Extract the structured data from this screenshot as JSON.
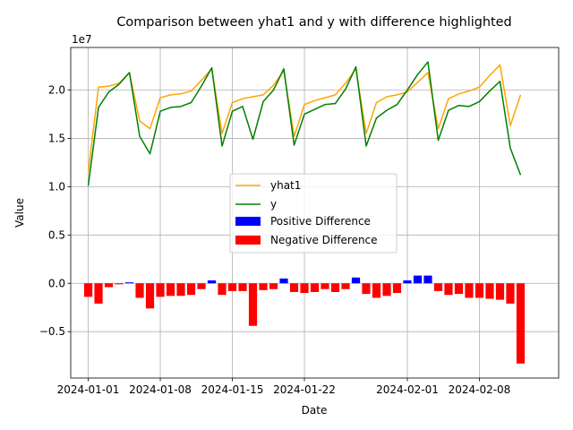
{
  "chart_data": {
    "type": "line+bar",
    "title": "Comparison between yhat1 and y with difference highlighted",
    "xlabel": "Date",
    "ylabel": "Value",
    "y_scale_note": "1e7",
    "ylim": [
      -9.8,
      24.4
    ],
    "grid": true,
    "legend_placement": "center",
    "x_start": "2024-01-01",
    "xlim_days": [
      -1.7,
      45.7
    ],
    "x_ticks": [
      {
        "day": 0,
        "label": "2024-01-01"
      },
      {
        "day": 7,
        "label": "2024-01-08"
      },
      {
        "day": 14,
        "label": "2024-01-15"
      },
      {
        "day": 21,
        "label": "2024-01-22"
      },
      {
        "day": 31,
        "label": "2024-02-01"
      },
      {
        "day": 38,
        "label": "2024-02-08"
      }
    ],
    "y_ticks": [
      {
        "value": -5,
        "label": "−0.5"
      },
      {
        "value": 0,
        "label": "0.0"
      },
      {
        "value": 5,
        "label": "0.5"
      },
      {
        "value": 10,
        "label": "1.0"
      },
      {
        "value": 15,
        "label": "1.5"
      },
      {
        "value": 20,
        "label": "2.0"
      }
    ],
    "series": [
      {
        "name": "yhat1",
        "color": "#ffa500",
        "style": "line",
        "values": [
          11.5,
          20.3,
          20.4,
          20.7,
          21.8,
          16.8,
          16.0,
          19.2,
          19.5,
          19.6,
          19.9,
          21.0,
          22.2,
          15.5,
          18.7,
          19.1,
          19.3,
          19.5,
          20.5,
          22.0,
          15.2,
          18.5,
          18.9,
          19.2,
          19.5,
          20.7,
          22.2,
          15.5,
          18.7,
          19.3,
          19.5,
          19.8,
          20.8,
          21.8,
          16.0,
          19.1,
          19.6,
          19.9,
          20.3,
          21.5,
          22.6,
          16.3,
          19.5
        ]
      },
      {
        "name": "y",
        "color": "#008000",
        "style": "line",
        "values": [
          10.1,
          18.2,
          19.8,
          20.6,
          21.8,
          15.2,
          13.4,
          17.8,
          18.2,
          18.3,
          18.7,
          20.4,
          22.3,
          14.2,
          17.8,
          18.3,
          14.9,
          18.8,
          20.0,
          22.2,
          14.3,
          17.5,
          18.0,
          18.5,
          18.6,
          20.1,
          22.4,
          14.2,
          17.1,
          17.9,
          18.5,
          20.0,
          21.6,
          22.9,
          14.8,
          17.9,
          18.4,
          18.3,
          18.8,
          19.9,
          20.9,
          14.0,
          11.2
        ]
      },
      {
        "name": "Positive Difference",
        "color": "#0000ff",
        "style": "bar"
      },
      {
        "name": "Negative Difference",
        "color": "#ff0000",
        "style": "bar"
      }
    ],
    "difference_values": [
      -1.4,
      -2.1,
      -0.4,
      -0.1,
      0.1,
      -1.5,
      -2.6,
      -1.4,
      -1.3,
      -1.3,
      -1.2,
      -0.6,
      0.3,
      -1.2,
      -0.8,
      -0.8,
      -4.4,
      -0.7,
      -0.6,
      0.5,
      -0.9,
      -1.0,
      -0.9,
      -0.6,
      -0.9,
      -0.6,
      0.6,
      -1.1,
      -1.5,
      -1.3,
      -1.0,
      0.3,
      0.8,
      0.8,
      -0.8,
      -1.2,
      -1.1,
      -1.5,
      -1.5,
      -1.6,
      -1.7,
      -2.1,
      -8.3
    ]
  }
}
